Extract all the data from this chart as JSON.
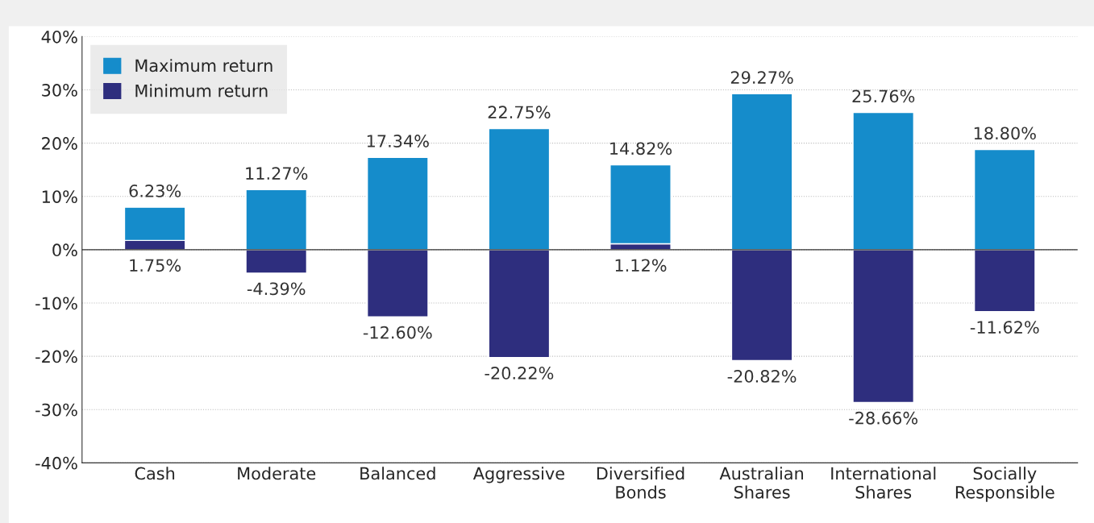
{
  "chart_data": {
    "type": "bar",
    "stacked": true,
    "categories": [
      "Cash",
      "Moderate",
      "Balanced",
      "Aggressive",
      "Diversified\nBonds",
      "Australian\nShares",
      "International\nShares",
      "Socially\nResponsible"
    ],
    "series": [
      {
        "name": "Minimum return",
        "color": "#2e2e7e",
        "values": [
          1.75,
          -4.39,
          -12.6,
          -20.22,
          1.12,
          -20.82,
          -28.66,
          -11.62
        ],
        "value_labels": [
          "1.75%",
          "-4.39%",
          "-12.60%",
          "-20.22%",
          "1.12%",
          "-20.82%",
          "-28.66%",
          "-11.62%"
        ]
      },
      {
        "name": "Maximum return",
        "color": "#158ccb",
        "values": [
          6.23,
          11.27,
          17.34,
          22.75,
          14.82,
          29.27,
          25.76,
          18.8
        ],
        "value_labels": [
          "6.23%",
          "11.27%",
          "17.34%",
          "22.75%",
          "14.82%",
          "29.27%",
          "25.76%",
          "18.80%"
        ]
      }
    ],
    "ylim": [
      -40,
      40
    ],
    "yticks": [
      {
        "value": -40,
        "label": "-40%"
      },
      {
        "value": -30,
        "label": "-30%"
      },
      {
        "value": -20,
        "label": "-20%"
      },
      {
        "value": -10,
        "label": "-10%"
      },
      {
        "value": 0,
        "label": "0%"
      },
      {
        "value": 10,
        "label": "10%"
      },
      {
        "value": 20,
        "label": "20%"
      },
      {
        "value": 30,
        "label": "30%"
      },
      {
        "value": 40,
        "label": "40%"
      }
    ],
    "grid": "y",
    "legend": "top left"
  }
}
